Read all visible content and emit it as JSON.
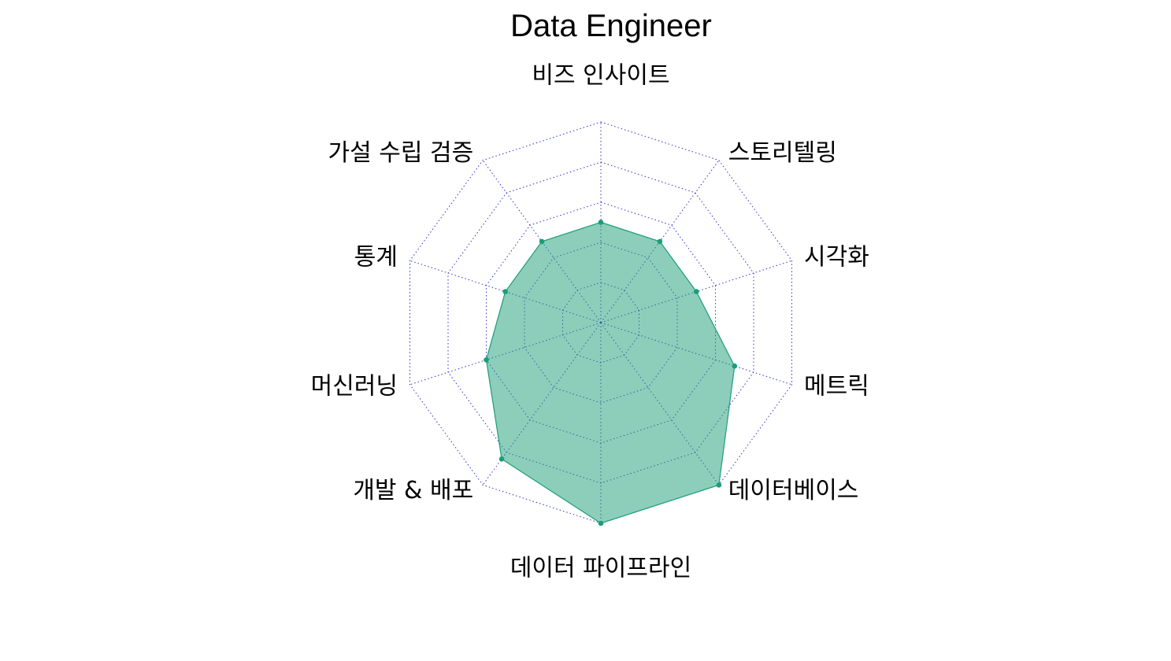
{
  "chart_data": {
    "type": "radar",
    "title": "Data Engineer",
    "axes": [
      "비즈 인사이트",
      "스토리텔링",
      "시각화",
      "메트릭",
      "데이터베이스",
      "데이터 파이프라인",
      "개발 & 배포",
      "머신러닝",
      "통계",
      "가설 수립 검증"
    ],
    "series": [
      {
        "values": [
          2.5,
          2.5,
          2.5,
          3.5,
          5,
          5,
          4.2,
          3.0,
          2.5,
          2.5
        ],
        "color": "#1b9e77"
      }
    ],
    "range": [
      0,
      5
    ],
    "grid_levels": 5,
    "grid": true,
    "grid_color": "#3333cc",
    "fill_opacity": 0.5
  }
}
